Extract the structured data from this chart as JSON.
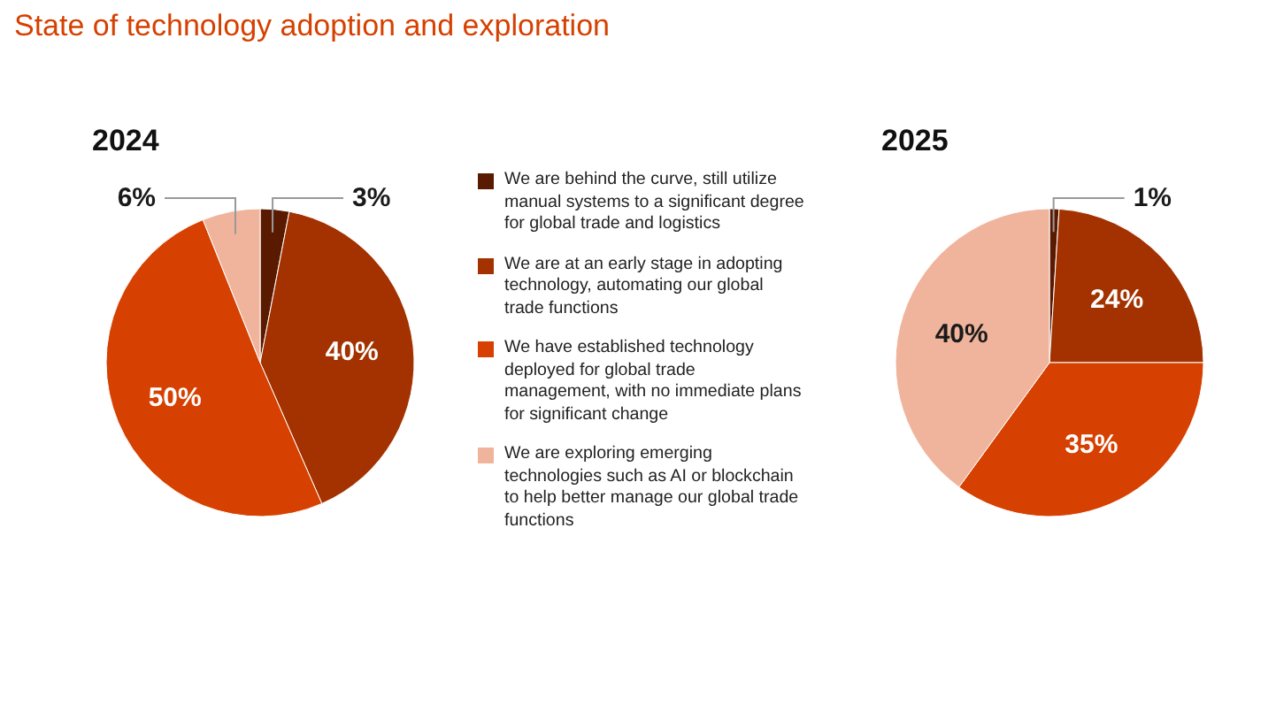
{
  "chart_data": [
    {
      "type": "pie",
      "title": "State of technology adoption and exploration",
      "subtitle": "2024",
      "legend": "right",
      "value_labels": [
        "3%",
        "40%",
        "50%",
        "6%"
      ],
      "categories": [
        "We are behind the curve, still utilize manual systems to a significant degree for global trade and logistics",
        "We are at an early stage in adopting technology, automating our global trade functions",
        "We have established technology deployed for global trade management, with no immediate plans for significant change",
        "We are exploring emerging technologies such as AI or blockchain to help better manage our global trade functions"
      ],
      "values": [
        3,
        40,
        50,
        6
      ],
      "colors": [
        "#5a1a00",
        "#a33200",
        "#d64000",
        "#f0b49c"
      ]
    },
    {
      "type": "pie",
      "title": "2025",
      "value_labels": [
        "1%",
        "24%",
        "35%",
        "40%"
      ],
      "categories": [
        null,
        null,
        null,
        null
      ],
      "values": [
        1,
        24,
        35,
        40
      ],
      "colors": [
        "#5a1a00",
        "#a33200",
        "#d64000",
        "#f0b49c"
      ]
    }
  ]
}
